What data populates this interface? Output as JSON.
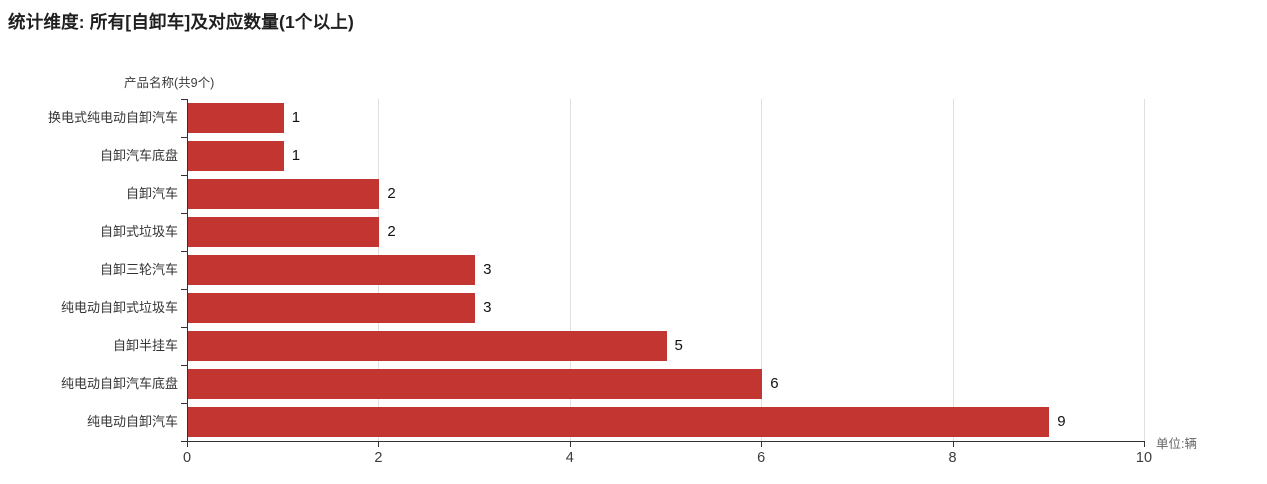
{
  "title": "统计维度: 所有[自卸车]及对应数量(1个以上)",
  "chart_data": {
    "type": "bar",
    "orientation": "horizontal",
    "title": "统计维度: 所有[自卸车]及对应数量(1个以上)",
    "ylabel": "产品名称(共9个)",
    "xlabel": "",
    "unit_label": "单位:辆",
    "categories": [
      "换电式纯电动自卸汽车",
      "自卸汽车底盘",
      "自卸汽车",
      "自卸式垃圾车",
      "自卸三轮汽车",
      "纯电动自卸式垃圾车",
      "自卸半挂车",
      "纯电动自卸汽车底盘",
      "纯电动自卸汽车"
    ],
    "values": [
      1,
      1,
      2,
      2,
      3,
      3,
      5,
      6,
      9
    ],
    "xlim": [
      0,
      10
    ],
    "x_ticks": [
      0,
      2,
      4,
      6,
      8,
      10
    ],
    "bar_color": "#c23531",
    "grid": true,
    "value_labels": true,
    "legend": "none"
  }
}
